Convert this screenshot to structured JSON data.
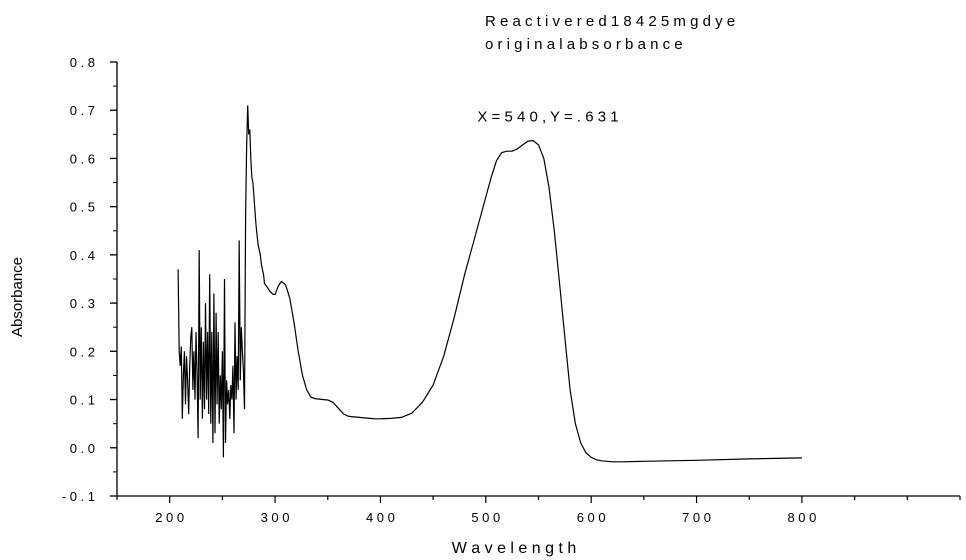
{
  "chart_data": {
    "type": "line",
    "title": "R e a c t i v e  r e d  1 8 4  2 5 m g  d y e",
    "subtitle": "o r i g i n a l a b s o r b a n c e",
    "xlabel": "W a v e l e n g t h",
    "ylabel": "Absorbance",
    "xlim": [
      150,
      950
    ],
    "ylim": [
      -0.1,
      0.8
    ],
    "x_ticks": [
      200,
      300,
      400,
      500,
      600,
      700,
      800
    ],
    "x_tick_labels": [
      "2 0 0",
      "3 0 0",
      "4 0 0",
      "5 0 0",
      "6 0 0",
      "7 0 0",
      "8 0 0"
    ],
    "y_ticks": [
      -0.1,
      0.0,
      0.1,
      0.2,
      0.3,
      0.4,
      0.5,
      0.6,
      0.7,
      0.8
    ],
    "y_tick_labels": [
      "- 0 . 1",
      "0 . 0",
      "0 . 1",
      "0 . 2",
      "0 . 3",
      "0 . 4",
      "0 . 5",
      "0 . 6",
      "0 . 7",
      "0 . 8"
    ],
    "grid": false,
    "legend": "none",
    "line_color": "#000000",
    "annotation": {
      "text": "X = 5 4 0 , Y = . 6 3 1",
      "x": 540,
      "y": 0.631
    },
    "series": [
      {
        "x": [
          208,
          209,
          210,
          211,
          212,
          213,
          214,
          215,
          216,
          217,
          218,
          219,
          220,
          221,
          222,
          223,
          224,
          225,
          226,
          227,
          228,
          229,
          230,
          231,
          232,
          233,
          234,
          235,
          236,
          237,
          238,
          239,
          240,
          241,
          242,
          243,
          244,
          245,
          246,
          247,
          248,
          249,
          250,
          251,
          252,
          253,
          254,
          255,
          256,
          257,
          258,
          259,
          260,
          261,
          262,
          263,
          264,
          265,
          266,
          267,
          268,
          269,
          270,
          271,
          272,
          273,
          274,
          275,
          276,
          277,
          278,
          279,
          280,
          281,
          282,
          283,
          284,
          285,
          286,
          287,
          288,
          289,
          290,
          292,
          295,
          298,
          300,
          303,
          306,
          310,
          314,
          318,
          322,
          326,
          330,
          334,
          338,
          342,
          346,
          350,
          355,
          360,
          365,
          370,
          375,
          380,
          385,
          390,
          395,
          400,
          410,
          420,
          430,
          440,
          450,
          460,
          470,
          480,
          490,
          500,
          505,
          510,
          515,
          520,
          525,
          530,
          535,
          540,
          545,
          550,
          555,
          560,
          565,
          570,
          575,
          580,
          585,
          590,
          595,
          600,
          605,
          610,
          615,
          620,
          630,
          650,
          700,
          750,
          800
        ],
        "y": [
          0.37,
          0.2,
          0.17,
          0.21,
          0.06,
          0.15,
          0.2,
          0.09,
          0.19,
          0.14,
          0.07,
          0.17,
          0.23,
          0.25,
          0.12,
          0.2,
          0.1,
          0.24,
          0.15,
          0.02,
          0.41,
          0.1,
          0.25,
          0.06,
          0.22,
          0.08,
          0.3,
          0.1,
          0.24,
          0.07,
          0.36,
          0.05,
          0.24,
          0.01,
          0.32,
          0.03,
          0.28,
          0.09,
          0.24,
          0.05,
          0.15,
          0.08,
          0.2,
          -0.02,
          0.35,
          0.01,
          0.14,
          0.09,
          0.12,
          0.06,
          0.13,
          0.1,
          0.17,
          0.03,
          0.26,
          0.1,
          0.19,
          0.12,
          0.43,
          0.14,
          0.25,
          0.2,
          0.16,
          0.08,
          0.48,
          0.62,
          0.71,
          0.65,
          0.66,
          0.6,
          0.56,
          0.55,
          0.52,
          0.49,
          0.46,
          0.44,
          0.42,
          0.41,
          0.4,
          0.38,
          0.37,
          0.36,
          0.34,
          0.335,
          0.325,
          0.318,
          0.318,
          0.335,
          0.345,
          0.338,
          0.31,
          0.26,
          0.2,
          0.15,
          0.12,
          0.105,
          0.102,
          0.101,
          0.1,
          0.099,
          0.094,
          0.082,
          0.07,
          0.065,
          0.064,
          0.063,
          0.062,
          0.061,
          0.06,
          0.06,
          0.061,
          0.063,
          0.072,
          0.095,
          0.13,
          0.19,
          0.27,
          0.36,
          0.44,
          0.52,
          0.56,
          0.595,
          0.612,
          0.615,
          0.615,
          0.62,
          0.628,
          0.636,
          0.637,
          0.628,
          0.6,
          0.54,
          0.45,
          0.34,
          0.23,
          0.12,
          0.05,
          0.01,
          -0.01,
          -0.02,
          -0.025,
          -0.027,
          -0.028,
          -0.029,
          -0.029,
          -0.028,
          -0.026,
          -0.023,
          -0.021
        ]
      }
    ]
  }
}
